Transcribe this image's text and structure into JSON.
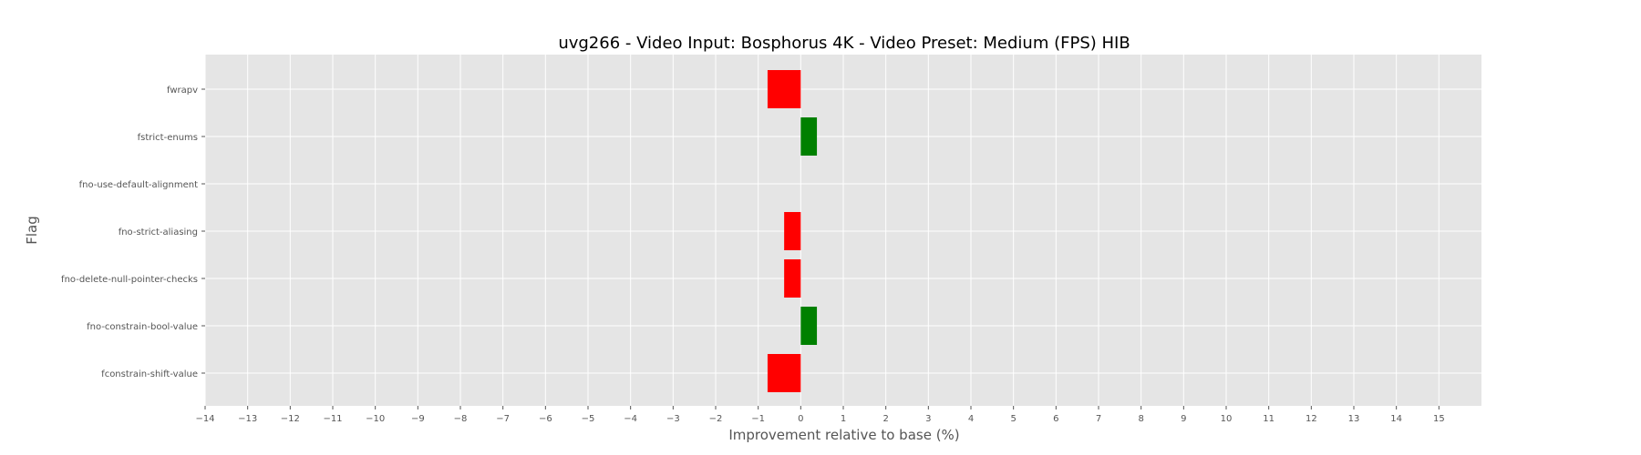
{
  "chart_data": {
    "type": "bar",
    "orientation": "horizontal",
    "title": "uvg266 - Video Input: Bosphorus 4K - Video Preset: Medium (FPS) HIB",
    "xlabel": "Improvement relative to base (%)",
    "ylabel": "Flag",
    "categories": [
      "fwrapv",
      "fstrict-enums",
      "fno-use-default-alignment",
      "fno-strict-aliasing",
      "fno-delete-null-pointer-checks",
      "fno-constrain-bool-value",
      "fconstrain-shift-value"
    ],
    "values": [
      -0.78,
      0.38,
      0.0,
      -0.39,
      -0.39,
      0.38,
      -0.78
    ],
    "xlim": [
      -14,
      16
    ],
    "xticks": [
      -14,
      -13,
      -12,
      -11,
      -10,
      -9,
      -8,
      -7,
      -6,
      -5,
      -4,
      -3,
      -2,
      -1,
      0,
      1,
      2,
      3,
      4,
      5,
      6,
      7,
      8,
      9,
      10,
      11,
      12,
      13,
      14,
      15
    ],
    "grid": true,
    "colors": {
      "positive": "#008000",
      "negative": "#ff0000",
      "plot_background": "#e5e5e5",
      "grid": "#ffffff"
    }
  }
}
